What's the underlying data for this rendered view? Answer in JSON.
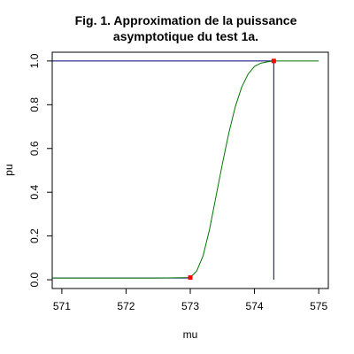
{
  "chart_data": {
    "type": "line",
    "title_lines": [
      "Fig. 1. Approximation de la puissance",
      "asymptotique du test 1a."
    ],
    "xlabel": "mu",
    "ylabel": "pu",
    "xlim": [
      570.85,
      575.15
    ],
    "ylim": [
      -0.04,
      1.04
    ],
    "x_ticks": [
      571,
      572,
      573,
      574,
      575
    ],
    "x_tick_labels": [
      "571",
      "572",
      "573",
      "574",
      "575"
    ],
    "y_ticks": [
      0.0,
      0.2,
      0.4,
      0.6,
      0.8,
      1.0
    ],
    "y_tick_labels": [
      "0.0",
      "0.2",
      "0.4",
      "0.6",
      "0.8",
      "1.0"
    ],
    "grid": false,
    "series": [
      {
        "color": "#007700",
        "x": [
          570.85,
          572.5,
          573.0,
          573.1,
          573.2,
          573.3,
          573.4,
          573.5,
          573.6,
          573.7,
          573.8,
          573.9,
          574.0,
          574.1,
          574.2,
          574.3,
          574.5,
          575.0
        ],
        "y": [
          0.008,
          0.008,
          0.01,
          0.04,
          0.11,
          0.23,
          0.38,
          0.53,
          0.67,
          0.79,
          0.88,
          0.94,
          0.975,
          0.99,
          0.996,
          1.0,
          1.0,
          1.0
        ]
      }
    ],
    "reference_lines": [
      {
        "orientation": "horizontal",
        "value": 0.008,
        "from": 570.85,
        "to": 573.0,
        "color": "#0000aa"
      },
      {
        "orientation": "horizontal",
        "value": 1.0,
        "from": 570.85,
        "to": 574.3,
        "color": "#000077"
      },
      {
        "orientation": "vertical",
        "value": 574.3,
        "from": 0.0,
        "to": 1.0,
        "color": "#000077"
      }
    ],
    "markers": [
      {
        "x": 573.0,
        "y": 0.01,
        "color": "#ff0000"
      },
      {
        "x": 574.3,
        "y": 1.0,
        "color": "#ff0000"
      }
    ]
  }
}
